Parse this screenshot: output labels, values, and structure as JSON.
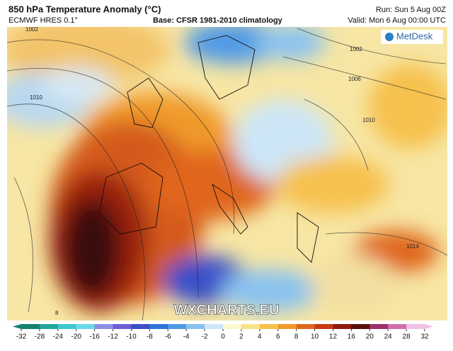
{
  "header": {
    "title": "850 hPa Temperature Anomaly (°C)",
    "model": "ECMWF HRES 0.1°",
    "base": "Base: CFSR 1981-2010 climatology",
    "run": "Run: Sun 5 Aug 00Z",
    "valid": "Valid: Mon 6 Aug 00:00 UTC"
  },
  "logo": "MetDesk",
  "watermark": "WXCHARTS.EU",
  "isobar_labels": [
    "1002",
    "1010",
    "1002",
    "1006",
    "1010",
    "1014",
    "8"
  ],
  "colorbar": {
    "ticks": [
      -32,
      -28,
      -24,
      -20,
      -16,
      -12,
      -10,
      -8,
      -6,
      -4,
      -2,
      0,
      2,
      4,
      6,
      8,
      10,
      12,
      16,
      20,
      24,
      28,
      32
    ],
    "colors": [
      "#15806e",
      "#22a59a",
      "#3cc7cc",
      "#6bd8ea",
      "#8c8fe6",
      "#6f5cd4",
      "#3b4fc8",
      "#2f74d6",
      "#4f9ae6",
      "#89c2f0",
      "#cde6f7",
      "#fbf7d0",
      "#f9e28a",
      "#f6c14e",
      "#f09a2c",
      "#e0661e",
      "#c83a16",
      "#8e1a10",
      "#5a0e0a",
      "#a0306a",
      "#d070b0",
      "#f0c0e6"
    ]
  }
}
